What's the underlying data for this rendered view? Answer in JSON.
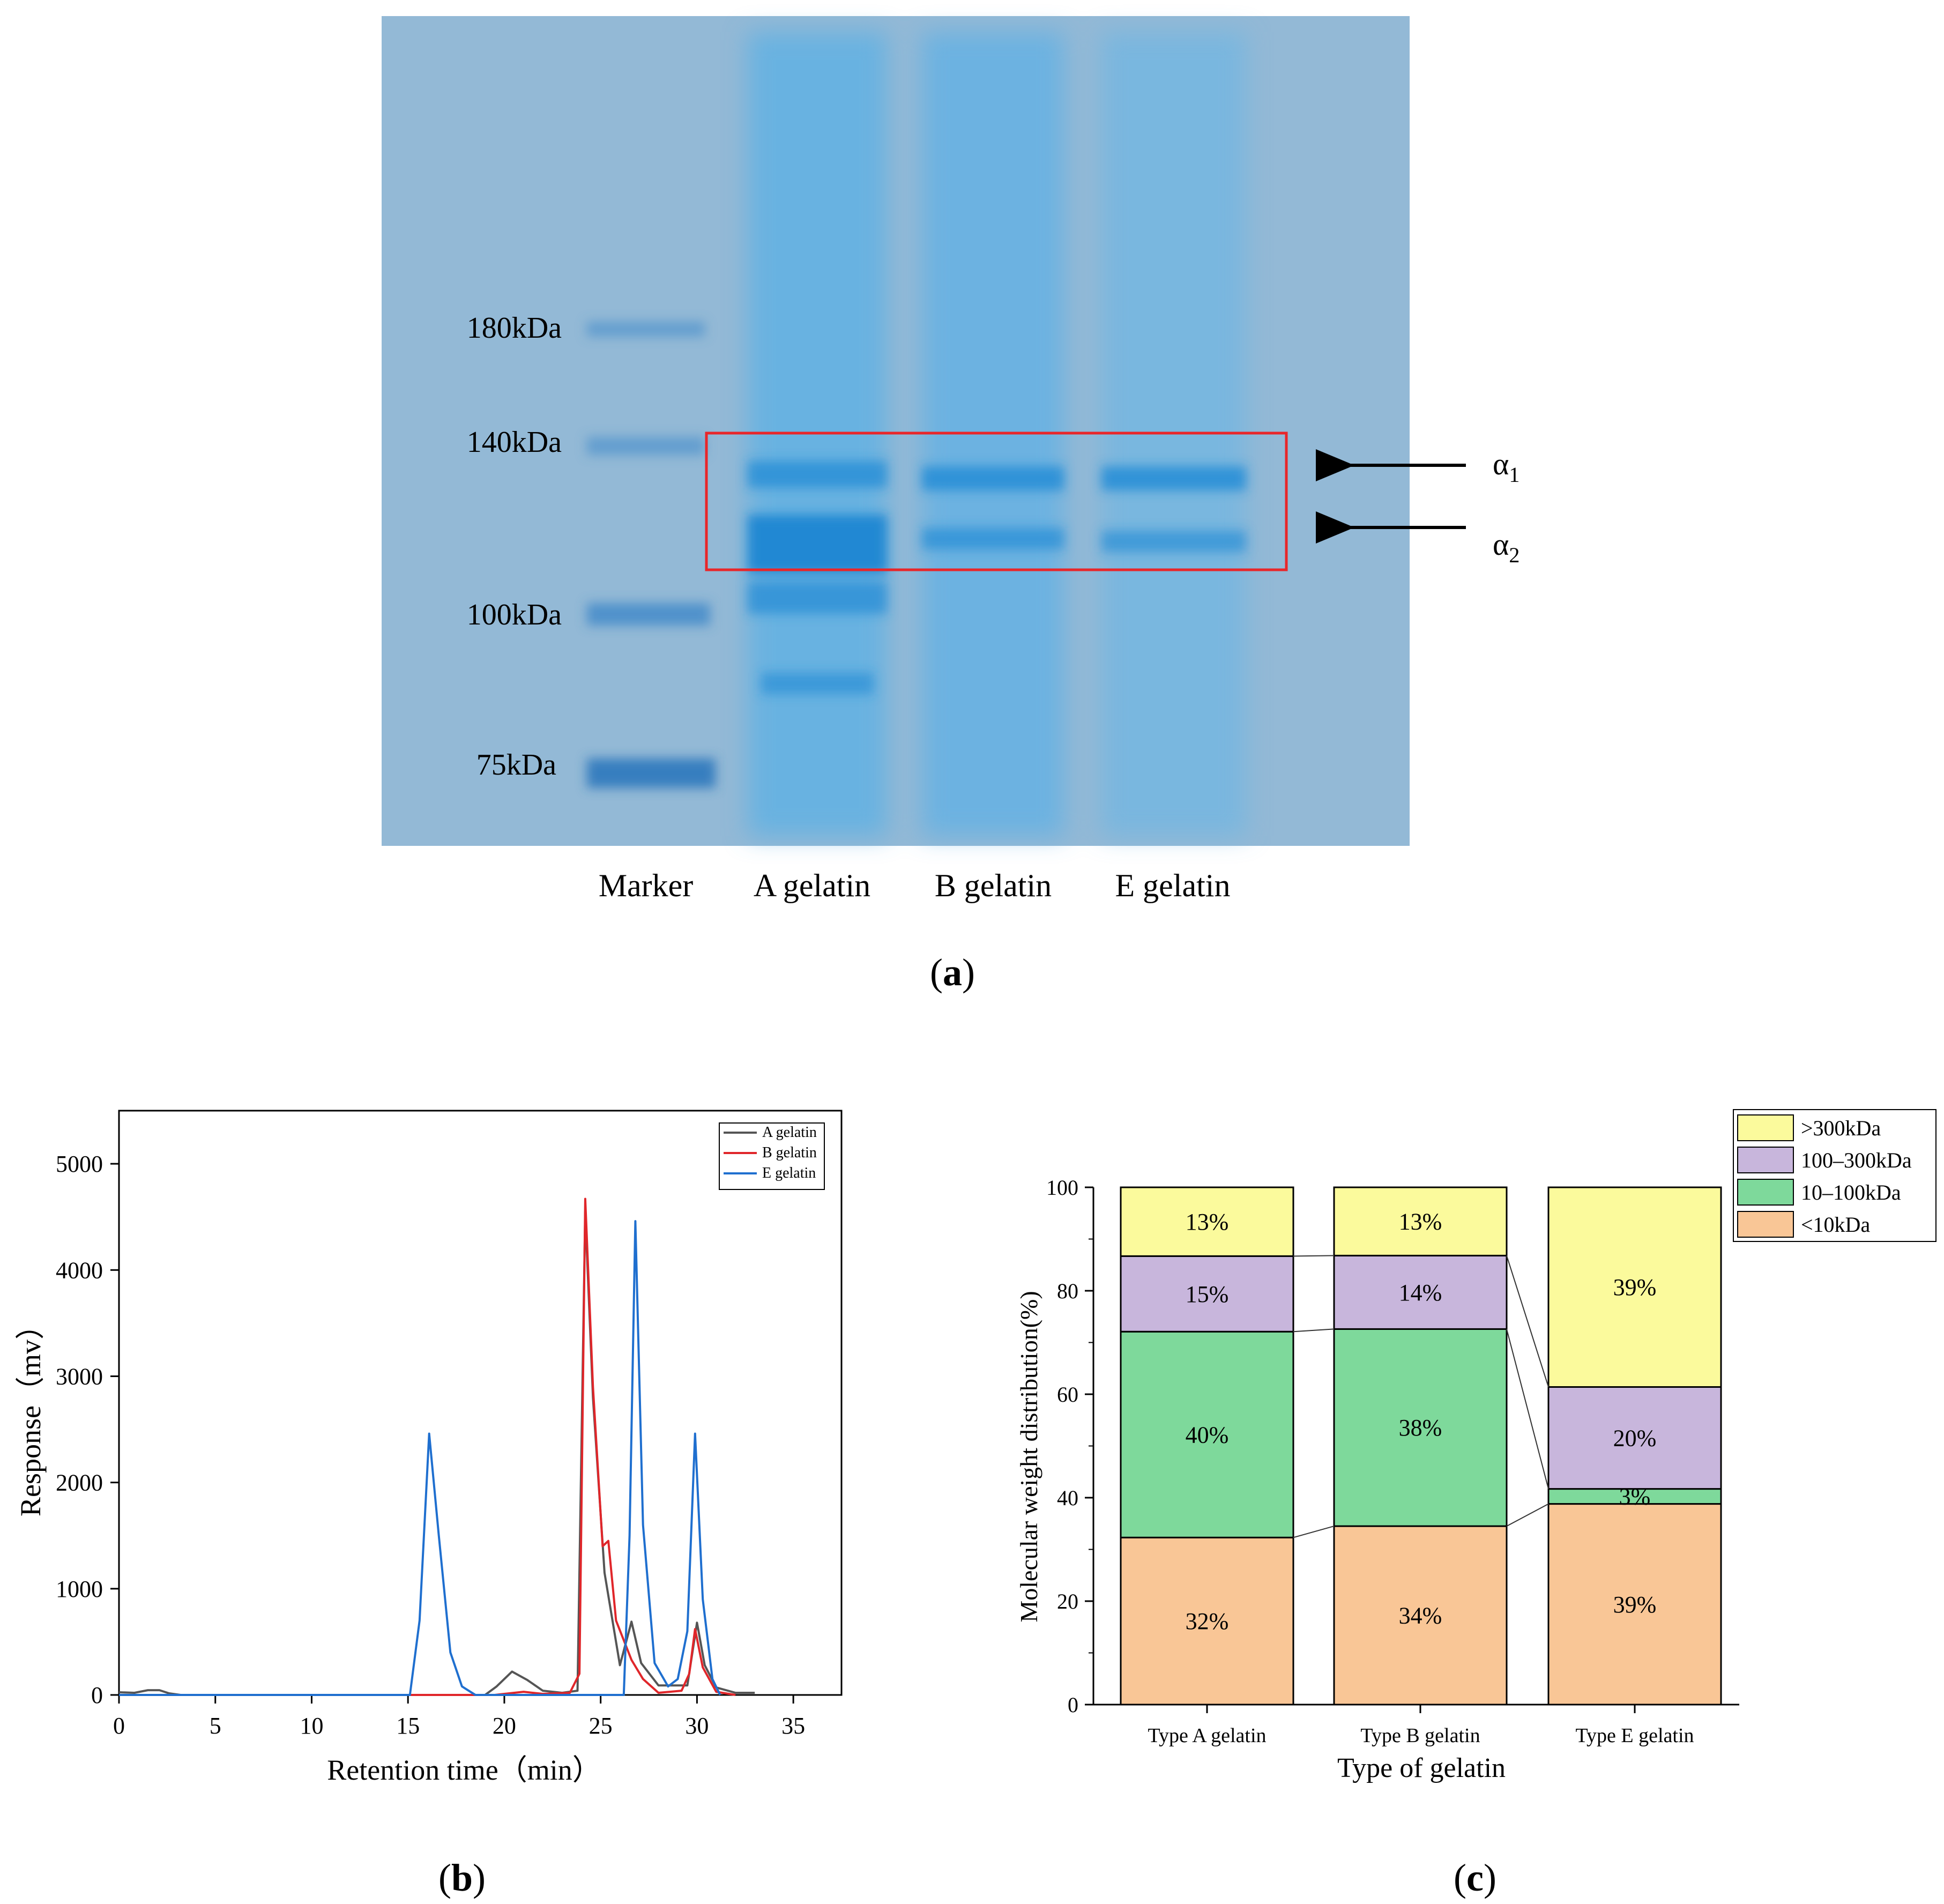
{
  "panels": {
    "a": {
      "label_letter": "a",
      "marker_labels": [
        "180kDa",
        "140kDa",
        "100kDa",
        "75kDa"
      ],
      "lane_labels": [
        "Marker",
        "A gelatin",
        "B gelatin",
        "E gelatin"
      ],
      "arrow_labels": [
        {
          "symbol": "α",
          "sub": "1"
        },
        {
          "symbol": "α",
          "sub": "2"
        }
      ],
      "highlight_color": "#e8262a",
      "gel_color": "#93b9d6",
      "band_color": "#2a8fd6"
    },
    "b": {
      "label_letter": "b"
    },
    "c": {
      "label_letter": "c"
    }
  },
  "chart_data": [
    {
      "type": "line",
      "xlabel": "Retention time（min）",
      "ylabel": "Response（mv）",
      "xlim": [
        0,
        37.5
      ],
      "ylim": [
        0,
        5500
      ],
      "xticks": [
        0,
        5,
        10,
        15,
        20,
        25,
        30,
        35
      ],
      "yticks": [
        0,
        1000,
        2000,
        3000,
        4000,
        5000
      ],
      "grid": false,
      "legend": "top-right",
      "series": [
        {
          "name": "A gelatin",
          "color": "#555555",
          "points": [
            [
              0,
              25
            ],
            [
              0.8,
              20
            ],
            [
              1.5,
              45
            ],
            [
              2.1,
              45
            ],
            [
              2.6,
              15
            ],
            [
              3.2,
              0
            ],
            [
              19,
              0
            ],
            [
              19.6,
              80
            ],
            [
              20.4,
              220
            ],
            [
              21.2,
              140
            ],
            [
              22,
              40
            ],
            [
              23,
              20
            ],
            [
              23.8,
              40
            ],
            [
              24.2,
              4550
            ],
            [
              24.6,
              2800
            ],
            [
              25.2,
              1150
            ],
            [
              26,
              280
            ],
            [
              26.6,
              690
            ],
            [
              27.1,
              300
            ],
            [
              28,
              90
            ],
            [
              29.5,
              90
            ],
            [
              30,
              680
            ],
            [
              30.4,
              280
            ],
            [
              31,
              70
            ],
            [
              32,
              20
            ],
            [
              33,
              20
            ]
          ]
        },
        {
          "name": "B gelatin",
          "color": "#e0262a",
          "points": [
            [
              0,
              0
            ],
            [
              19.5,
              0
            ],
            [
              20,
              10
            ],
            [
              21,
              30
            ],
            [
              22,
              10
            ],
            [
              23.4,
              20
            ],
            [
              23.9,
              200
            ],
            [
              24.2,
              4670
            ],
            [
              24.6,
              2900
            ],
            [
              25.1,
              1400
            ],
            [
              25.4,
              1450
            ],
            [
              25.8,
              700
            ],
            [
              26.6,
              330
            ],
            [
              27.2,
              150
            ],
            [
              28,
              20
            ],
            [
              29.2,
              40
            ],
            [
              29.6,
              200
            ],
            [
              29.9,
              620
            ],
            [
              30.3,
              260
            ],
            [
              31,
              30
            ],
            [
              32,
              0
            ]
          ]
        },
        {
          "name": "E gelatin",
          "color": "#1f6fcf",
          "points": [
            [
              0,
              0
            ],
            [
              15.1,
              0
            ],
            [
              15.6,
              700
            ],
            [
              16.1,
              2460
            ],
            [
              16.6,
              1500
            ],
            [
              17.2,
              400
            ],
            [
              17.8,
              80
            ],
            [
              18.5,
              0
            ],
            [
              26.2,
              0
            ],
            [
              26.5,
              1500
            ],
            [
              26.8,
              4460
            ],
            [
              27.2,
              1600
            ],
            [
              27.8,
              300
            ],
            [
              28.5,
              80
            ],
            [
              29,
              150
            ],
            [
              29.5,
              600
            ],
            [
              29.9,
              2460
            ],
            [
              30.3,
              900
            ],
            [
              30.8,
              150
            ],
            [
              31.2,
              0
            ]
          ]
        }
      ]
    },
    {
      "type": "bar",
      "stacked": true,
      "xlabel": "Type of gelatin",
      "ylabel": "Molecular weight distribution(%)",
      "ylim": [
        0,
        100
      ],
      "yticks": [
        0,
        20,
        40,
        60,
        80,
        100
      ],
      "legend": "top-right",
      "categories": [
        "Type A gelatin",
        "Type B gelatin",
        "Type E gelatin"
      ],
      "series": [
        {
          "name": "<10kDa",
          "color": "#f9c696",
          "values": [
            32.3,
            34.5,
            38.8
          ],
          "labels": [
            "32%",
            "34%",
            "39%"
          ]
        },
        {
          "name": "10–100kDa",
          "color": "#7ed99b",
          "values": [
            39.8,
            38.1,
            2.9
          ],
          "labels": [
            "40%",
            "38%",
            "3%"
          ]
        },
        {
          "name": "100–300kDa",
          "color": "#c8b6dc",
          "values": [
            14.6,
            14.2,
            19.7
          ],
          "labels": [
            "15%",
            "14%",
            "20%"
          ]
        },
        {
          "name": ">300kDa",
          "color": "#fbfa9c",
          "values": [
            13.3,
            13.2,
            38.6
          ],
          "labels": [
            "13%",
            "13%",
            "39%"
          ]
        }
      ],
      "legend_order": [
        ">300kDa",
        "100–300kDa",
        "10–100kDa",
        "<10kDa"
      ]
    }
  ]
}
